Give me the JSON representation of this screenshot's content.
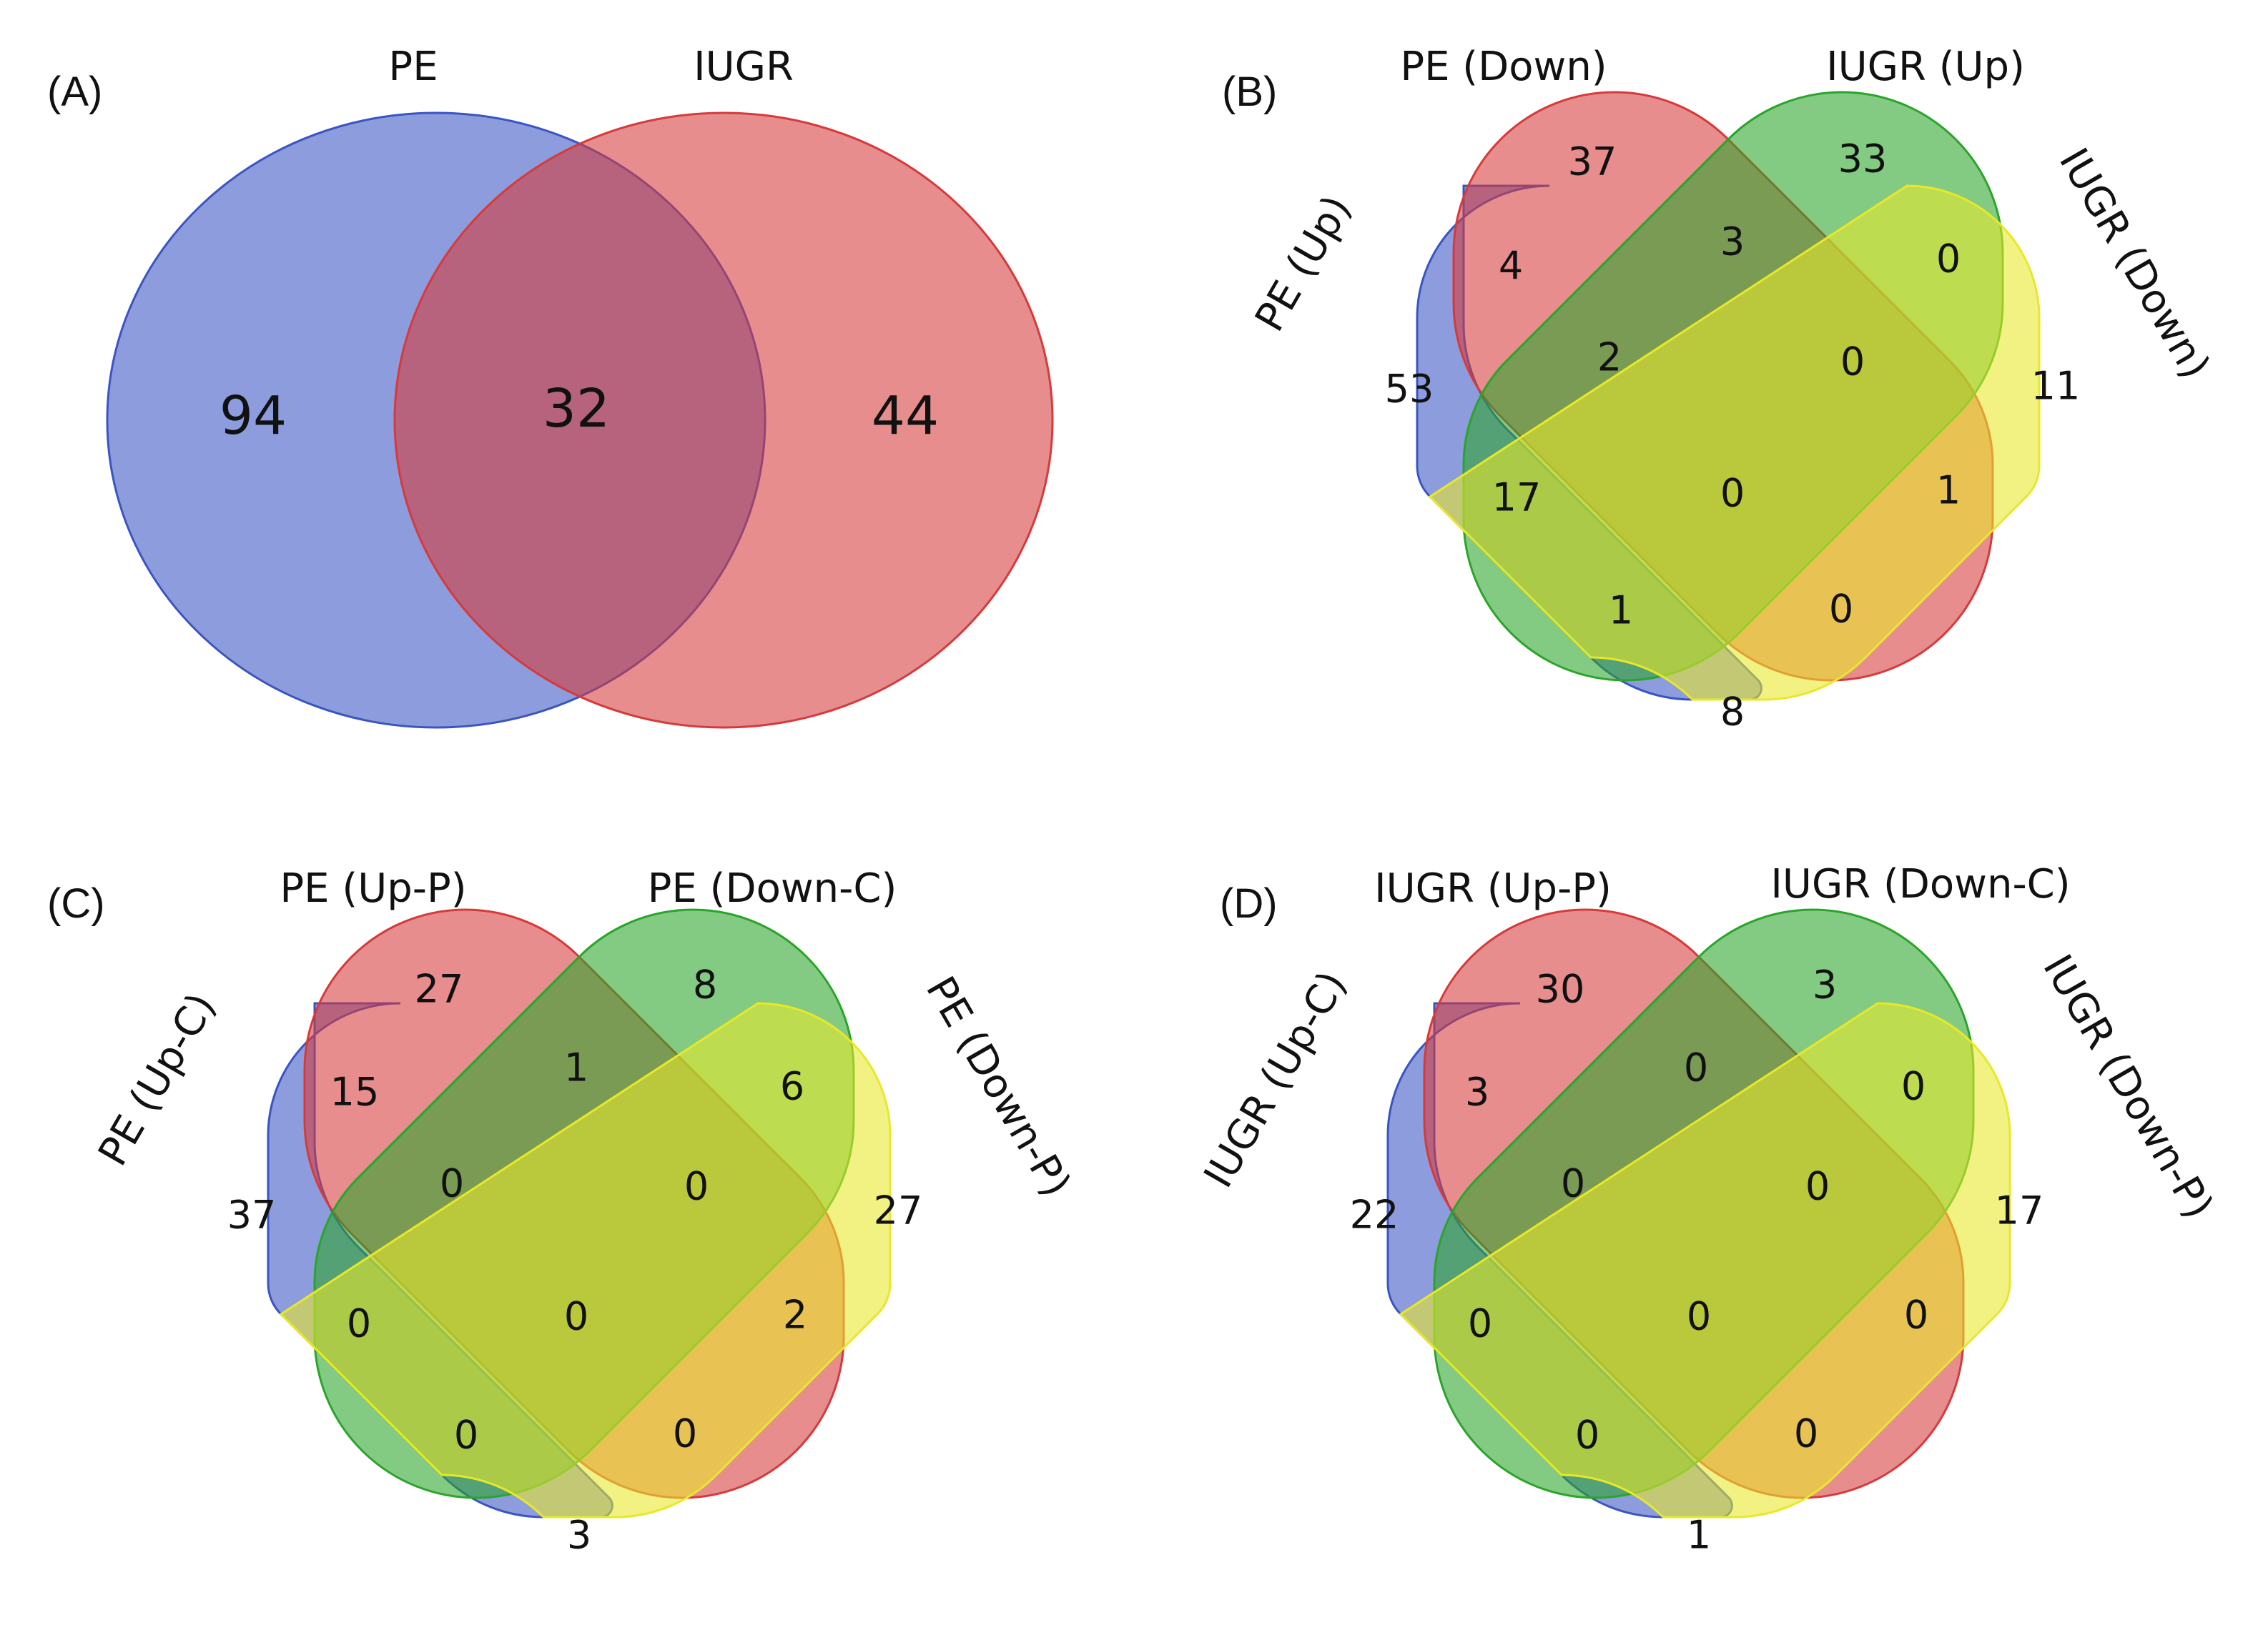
{
  "colors": {
    "blue": "#3a55c2",
    "red": "#d63a3a",
    "green": "#2aa52a",
    "yellow": "#e8e82a",
    "text": "#111111"
  },
  "panels": [
    {
      "id": "A",
      "letter": "(A)",
      "type": "venn2",
      "sets": [
        {
          "name": "PE",
          "label": "PE",
          "color": "blue"
        },
        {
          "name": "IUGR",
          "label": "IUGR",
          "color": "red"
        }
      ],
      "counts": {
        "pe_only": "94",
        "pe_iugr": "32",
        "iugr_only": "44"
      }
    },
    {
      "id": "B",
      "letter": "(B)",
      "type": "venn4",
      "sets": [
        {
          "name": "PE (Up)",
          "label": "PE (Up)",
          "color": "blue"
        },
        {
          "name": "PE (Down)",
          "label": "PE (Down)",
          "color": "red"
        },
        {
          "name": "IUGR (Up)",
          "label": "IUGR (Up)",
          "color": "green"
        },
        {
          "name": "IUGR (Down)",
          "label": "IUGR (Down)",
          "color": "yellow"
        }
      ],
      "counts": {
        "a": "53",
        "b": "37",
        "c": "33",
        "d": "11",
        "ab": "4",
        "bc": "3",
        "cd": "0",
        "ac": "17",
        "bd": "1",
        "ad": "8",
        "abc": "2",
        "bcd": "0",
        "acd": "1",
        "abd": "0",
        "abcd": "0"
      }
    },
    {
      "id": "C",
      "letter": "(C)",
      "type": "venn4",
      "sets": [
        {
          "name": "PE (Up-C)",
          "label": "PE (Up-C)",
          "color": "blue"
        },
        {
          "name": "PE (Up-P)",
          "label": "PE (Up-P)",
          "color": "red"
        },
        {
          "name": "PE (Down-C)",
          "label": "PE (Down-C)",
          "color": "green"
        },
        {
          "name": "PE (Down-P)",
          "label": "PE (Down-P)",
          "color": "yellow"
        }
      ],
      "counts": {
        "a": "37",
        "b": "27",
        "c": "8",
        "d": "27",
        "ab": "15",
        "bc": "1",
        "cd": "6",
        "ac": "0",
        "bd": "2",
        "ad": "3",
        "abc": "0",
        "bcd": "0",
        "acd": "0",
        "abd": "0",
        "abcd": "0"
      }
    },
    {
      "id": "D",
      "letter": "(D)",
      "type": "venn4",
      "sets": [
        {
          "name": "IUGR (Up-C)",
          "label": "IUGR (Up-C)",
          "color": "blue"
        },
        {
          "name": "IUGR (Up-P)",
          "label": "IUGR (Up-P)",
          "color": "red"
        },
        {
          "name": "IUGR (Down-C)",
          "label": "IUGR (Down-C)",
          "color": "green"
        },
        {
          "name": "IUGR (Down-P)",
          "label": "IUGR (Down-P)",
          "color": "yellow"
        }
      ],
      "counts": {
        "a": "22",
        "b": "30",
        "c": "3",
        "d": "17",
        "ab": "3",
        "bc": "0",
        "cd": "0",
        "ac": "0",
        "bd": "0",
        "ad": "1",
        "abc": "0",
        "bcd": "0",
        "acd": "0",
        "abd": "0",
        "abcd": "0"
      }
    }
  ]
}
